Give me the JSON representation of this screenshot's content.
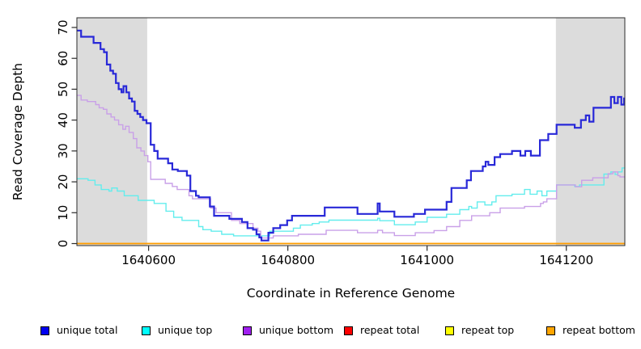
{
  "figure": {
    "kind": "read-coverage-plot"
  },
  "chart_data": {
    "type": "line",
    "step": true,
    "title": "",
    "xlabel": "Coordinate in Reference Genome",
    "ylabel": "Read Coverage Depth",
    "xlim": [
      1640497,
      1641284
    ],
    "ylim": [
      0,
      70
    ],
    "x_ticks": [
      1640600,
      1640800,
      1641000,
      1641200
    ],
    "y_ticks": [
      0,
      10,
      20,
      30,
      40,
      50,
      60,
      70
    ],
    "grid": false,
    "legend_position": "bottom",
    "shade_color": "#dcdcdc",
    "shaded_regions": [
      [
        1640497,
        1640598
      ],
      [
        1641185,
        1641284
      ]
    ],
    "series": [
      {
        "name": "repeat total",
        "line_color": "#ee0000",
        "width": 1.3,
        "points": [
          [
            1640497,
            0
          ]
        ]
      },
      {
        "name": "repeat top",
        "line_color": "#f5f500",
        "width": 1.3,
        "points": [
          [
            1640497,
            0
          ]
        ]
      },
      {
        "name": "unique top",
        "line_color": "#63eded",
        "width": 1.4,
        "points": [
          [
            1640497,
            21
          ],
          [
            1640513,
            20.5
          ],
          [
            1640523,
            19
          ],
          [
            1640532,
            17.5
          ],
          [
            1640543,
            17
          ],
          [
            1640547,
            18
          ],
          [
            1640555,
            17
          ],
          [
            1640565,
            15.5
          ],
          [
            1640585,
            14
          ],
          [
            1640608,
            13
          ],
          [
            1640625,
            10.5
          ],
          [
            1640636,
            8.5
          ],
          [
            1640648,
            7.5
          ],
          [
            1640672,
            5.5
          ],
          [
            1640678,
            4.5
          ],
          [
            1640690,
            4
          ],
          [
            1640705,
            3
          ],
          [
            1640722,
            2.5
          ],
          [
            1640774,
            4
          ],
          [
            1640808,
            5
          ],
          [
            1640818,
            6
          ],
          [
            1640835,
            6.5
          ],
          [
            1640845,
            7
          ],
          [
            1640859,
            7.6
          ],
          [
            1640929,
            8.2
          ],
          [
            1640932,
            7.4
          ],
          [
            1640953,
            6.1
          ],
          [
            1640983,
            7
          ],
          [
            1641000,
            8.5
          ],
          [
            1641028,
            9.5
          ],
          [
            1641047,
            11
          ],
          [
            1641060,
            12
          ],
          [
            1641064,
            11.5
          ],
          [
            1641072,
            13.5
          ],
          [
            1641083,
            12.5
          ],
          [
            1641093,
            13.5
          ],
          [
            1641099,
            15.5
          ],
          [
            1641122,
            16
          ],
          [
            1641140,
            17.5
          ],
          [
            1641148,
            16
          ],
          [
            1641158,
            17
          ],
          [
            1641165,
            15.5
          ],
          [
            1641172,
            17
          ],
          [
            1641186,
            19
          ],
          [
            1641212,
            18.5
          ],
          [
            1641219,
            19
          ],
          [
            1641254,
            22.5
          ],
          [
            1641264,
            23.2
          ],
          [
            1641270,
            22.4
          ],
          [
            1641274,
            23.2
          ],
          [
            1641280,
            24.5
          ]
        ]
      },
      {
        "name": "unique bottom",
        "line_color": "#c9a0e8",
        "width": 1.4,
        "points": [
          [
            1640497,
            48
          ],
          [
            1640503,
            46.5
          ],
          [
            1640512,
            46
          ],
          [
            1640524,
            45
          ],
          [
            1640529,
            44
          ],
          [
            1640535,
            43.5
          ],
          [
            1640540,
            42
          ],
          [
            1640546,
            41
          ],
          [
            1640551,
            40
          ],
          [
            1640557,
            38.5
          ],
          [
            1640563,
            37
          ],
          [
            1640567,
            38
          ],
          [
            1640572,
            36
          ],
          [
            1640578,
            34
          ],
          [
            1640583,
            31
          ],
          [
            1640589,
            30
          ],
          [
            1640594,
            28.5
          ],
          [
            1640599,
            26.5
          ],
          [
            1640603,
            20.8
          ],
          [
            1640624,
            19.5
          ],
          [
            1640634,
            18.5
          ],
          [
            1640641,
            17.5
          ],
          [
            1640658,
            15.5
          ],
          [
            1640663,
            14.5
          ],
          [
            1640689,
            11.5
          ],
          [
            1640697,
            10
          ],
          [
            1640719,
            7.5
          ],
          [
            1640731,
            6.5
          ],
          [
            1640750,
            5
          ],
          [
            1640757,
            4
          ],
          [
            1640761,
            1.8
          ],
          [
            1640779,
            2.5
          ],
          [
            1640815,
            3
          ],
          [
            1640855,
            4.3
          ],
          [
            1640900,
            3.5
          ],
          [
            1640929,
            4.3
          ],
          [
            1640936,
            3.5
          ],
          [
            1640953,
            2.6
          ],
          [
            1640983,
            3.5
          ],
          [
            1641010,
            4.2
          ],
          [
            1641028,
            5.5
          ],
          [
            1641047,
            7.5
          ],
          [
            1641064,
            9
          ],
          [
            1641090,
            10
          ],
          [
            1641105,
            11.5
          ],
          [
            1641140,
            12
          ],
          [
            1641163,
            13
          ],
          [
            1641167,
            13.5
          ],
          [
            1641172,
            14.5
          ],
          [
            1641186,
            19
          ],
          [
            1641213,
            18.4
          ],
          [
            1641222,
            20.5
          ],
          [
            1641238,
            21.3
          ],
          [
            1641260,
            22.6
          ],
          [
            1641267,
            23.2
          ],
          [
            1641274,
            22
          ],
          [
            1641277,
            21.6
          ]
        ]
      },
      {
        "name": "unique total",
        "line_color": "#2828d8",
        "width": 2.2,
        "points": [
          [
            1640497,
            69
          ],
          [
            1640503,
            67
          ],
          [
            1640521,
            65
          ],
          [
            1640531,
            63
          ],
          [
            1640536,
            62
          ],
          [
            1640540,
            58
          ],
          [
            1640545,
            56
          ],
          [
            1640549,
            55
          ],
          [
            1640553,
            52
          ],
          [
            1640557,
            50
          ],
          [
            1640561,
            49
          ],
          [
            1640564,
            51
          ],
          [
            1640568,
            49
          ],
          [
            1640572,
            47
          ],
          [
            1640576,
            46
          ],
          [
            1640580,
            43
          ],
          [
            1640584,
            42
          ],
          [
            1640588,
            41
          ],
          [
            1640592,
            40
          ],
          [
            1640597,
            39
          ],
          [
            1640603,
            32
          ],
          [
            1640608,
            30
          ],
          [
            1640613,
            27.5
          ],
          [
            1640628,
            26
          ],
          [
            1640634,
            24
          ],
          [
            1640642,
            23.5
          ],
          [
            1640655,
            22
          ],
          [
            1640660,
            17
          ],
          [
            1640668,
            15.5
          ],
          [
            1640672,
            15
          ],
          [
            1640688,
            12
          ],
          [
            1640694,
            9
          ],
          [
            1640716,
            8
          ],
          [
            1640734,
            7
          ],
          [
            1640742,
            5
          ],
          [
            1640750,
            4.5
          ],
          [
            1640755,
            3
          ],
          [
            1640759,
            2
          ],
          [
            1640762,
            1
          ],
          [
            1640772,
            3.5
          ],
          [
            1640779,
            5
          ],
          [
            1640789,
            6
          ],
          [
            1640799,
            7.5
          ],
          [
            1640806,
            9
          ],
          [
            1640853,
            11.7
          ],
          [
            1640900,
            9.6
          ],
          [
            1640929,
            13
          ],
          [
            1640932,
            10.4
          ],
          [
            1640953,
            8.7
          ],
          [
            1640981,
            9.6
          ],
          [
            1640997,
            11
          ],
          [
            1641028,
            13.5
          ],
          [
            1641035,
            18
          ],
          [
            1641057,
            20.5
          ],
          [
            1641063,
            23.5
          ],
          [
            1641080,
            25
          ],
          [
            1641084,
            26.5
          ],
          [
            1641088,
            25.5
          ],
          [
            1641097,
            28
          ],
          [
            1641105,
            29
          ],
          [
            1641122,
            30
          ],
          [
            1641134,
            28.5
          ],
          [
            1641141,
            30
          ],
          [
            1641149,
            28.5
          ],
          [
            1641162,
            33.5
          ],
          [
            1641174,
            35.5
          ],
          [
            1641186,
            38.5
          ],
          [
            1641212,
            37.5
          ],
          [
            1641221,
            40
          ],
          [
            1641228,
            41.5
          ],
          [
            1641233,
            39.5
          ],
          [
            1641239,
            44
          ],
          [
            1641264,
            47.5
          ],
          [
            1641269,
            45.5
          ],
          [
            1641274,
            47.5
          ],
          [
            1641279,
            45
          ],
          [
            1641283,
            47
          ]
        ]
      },
      {
        "name": "repeat bottom",
        "line_color": "#ff9d00",
        "width": 1.7,
        "points": [
          [
            1640497,
            0
          ]
        ]
      }
    ]
  },
  "legend": {
    "items": [
      {
        "label": "unique total",
        "color": "#0000f0"
      },
      {
        "label": "unique top",
        "color": "#00ffff"
      },
      {
        "label": "unique bottom",
        "color": "#a020f0"
      },
      {
        "label": "repeat total",
        "color": "#ff0000"
      },
      {
        "label": "repeat top",
        "color": "#ffff00"
      },
      {
        "label": "repeat bottom",
        "color": "#ffa500"
      }
    ]
  }
}
